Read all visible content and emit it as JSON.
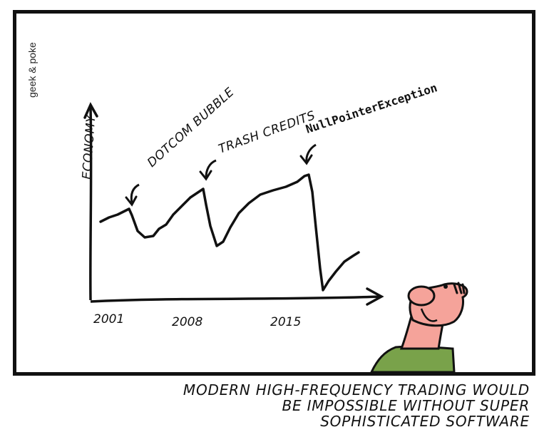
{
  "credit": "geek & poke",
  "axis_label": "ECONOMY",
  "annotations": {
    "dotcom": "DOTCOM BUBBLE",
    "trash": "TRASH CREDITS",
    "npe": "NullPointerException"
  },
  "x_ticks": [
    "2001",
    "2008",
    "2015"
  ],
  "caption_lines": [
    "MODERN HIGH-FREQUENCY TRADING WOULD",
    "BE IMPOSSIBLE WITHOUT SUPER",
    "SOPHISTICATED SOFTWARE"
  ],
  "colors": {
    "line": "#111111",
    "skin": "#f5a39a",
    "shirt": "#79a24a"
  }
}
